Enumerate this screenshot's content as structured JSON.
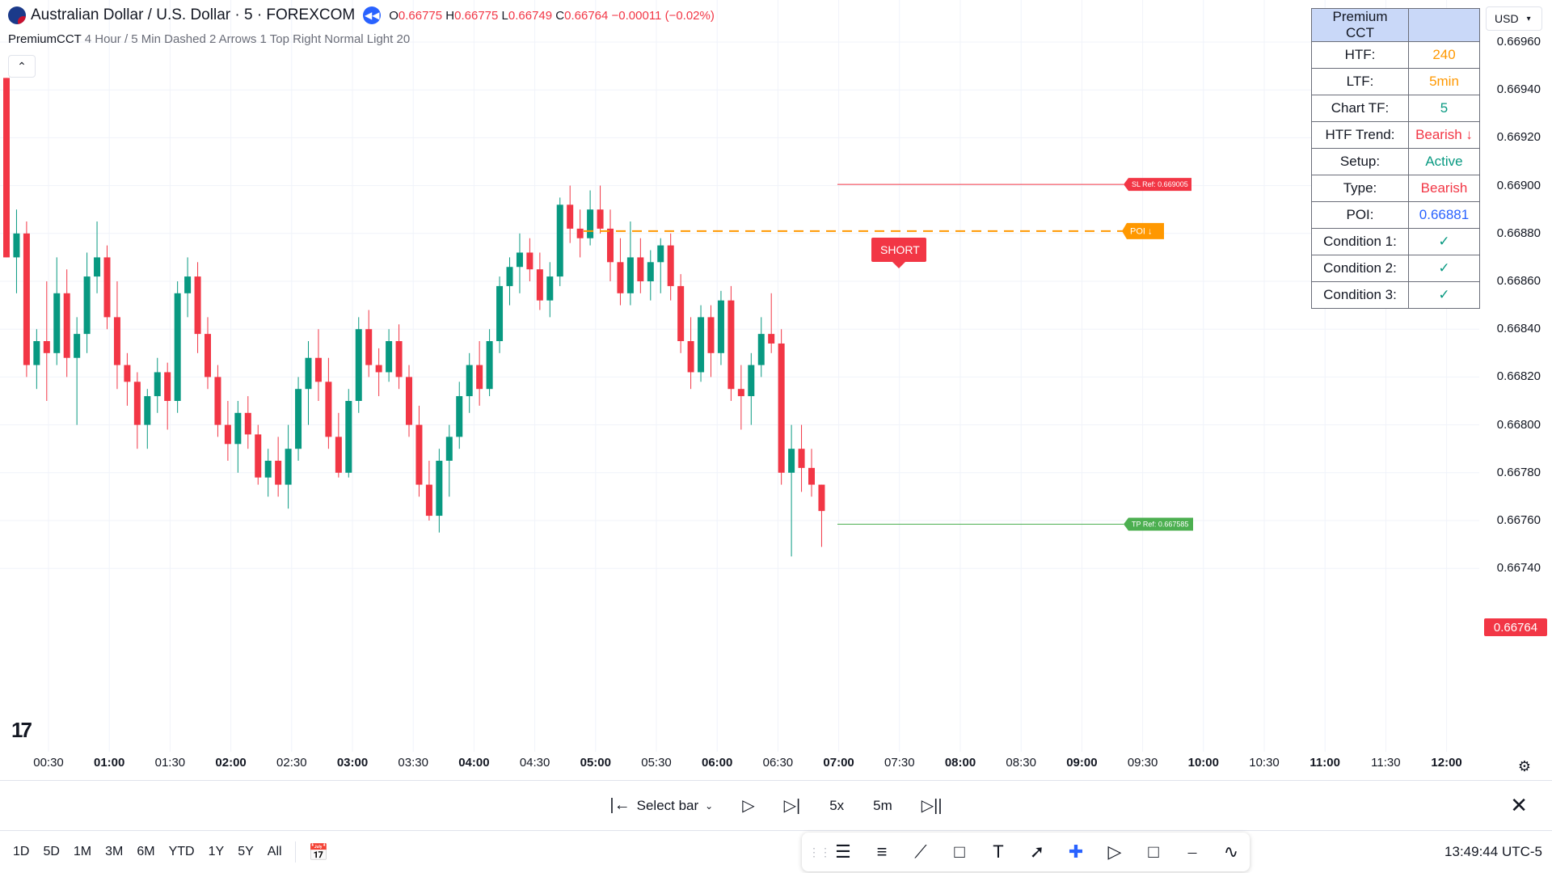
{
  "legend": {
    "title": "Australian Dollar / U.S. Dollar · 5 · FOREXCOM",
    "o_label": "O",
    "o_value": "0.66775",
    "h_label": "H",
    "h_value": "0.66775",
    "l_label": "L",
    "l_value": "0.66749",
    "c_label": "C",
    "c_value": "0.66764",
    "change": "−0.00011 (−0.02%)"
  },
  "indicator": {
    "name": "PremiumCCT",
    "params": "4 Hour / 5 Min Dashed 2 Arrows 1 Top Right Normal Light 20"
  },
  "price_axis": {
    "currency": "USD",
    "current_price": "0.66764",
    "labels": [
      "0.66960",
      "0.66940",
      "0.66920",
      "0.66900",
      "0.66880",
      "0.66860",
      "0.66840",
      "0.66820",
      "0.66800",
      "0.66780",
      "0.66760",
      "0.66740"
    ]
  },
  "time_axis": {
    "labels": [
      {
        "t": "00:30",
        "bold": false
      },
      {
        "t": "01:00",
        "bold": true
      },
      {
        "t": "01:30",
        "bold": false
      },
      {
        "t": "02:00",
        "bold": true
      },
      {
        "t": "02:30",
        "bold": false
      },
      {
        "t": "03:00",
        "bold": true
      },
      {
        "t": "03:30",
        "bold": false
      },
      {
        "t": "04:00",
        "bold": true
      },
      {
        "t": "04:30",
        "bold": false
      },
      {
        "t": "05:00",
        "bold": true
      },
      {
        "t": "05:30",
        "bold": false
      },
      {
        "t": "06:00",
        "bold": true
      },
      {
        "t": "06:30",
        "bold": false
      },
      {
        "t": "07:00",
        "bold": true
      },
      {
        "t": "07:30",
        "bold": false
      },
      {
        "t": "08:00",
        "bold": true
      },
      {
        "t": "08:30",
        "bold": false
      },
      {
        "t": "09:00",
        "bold": true
      },
      {
        "t": "09:30",
        "bold": false
      },
      {
        "t": "10:00",
        "bold": true
      },
      {
        "t": "10:30",
        "bold": false
      },
      {
        "t": "11:00",
        "bold": true
      },
      {
        "t": "11:30",
        "bold": false
      },
      {
        "t": "12:00",
        "bold": true
      }
    ]
  },
  "annotations": {
    "sl_label": "SL Ref: 0.669005",
    "sl_price": 0.669005,
    "poi_label": "POI ↓",
    "poi_price": 0.66881,
    "tp_label": "TP Ref: 0.667585",
    "tp_price": 0.667585,
    "short_label": "SHORT"
  },
  "cct_table": {
    "header": "Premium CCT",
    "rows": [
      {
        "k": "HTF:",
        "v": "240",
        "color": "#ff9800"
      },
      {
        "k": "LTF:",
        "v": "5min",
        "color": "#ff9800"
      },
      {
        "k": "Chart TF:",
        "v": "5",
        "color": "#089981"
      },
      {
        "k": "HTF Trend:",
        "v": "Bearish ↓",
        "color": "#f23645"
      },
      {
        "k": "Setup:",
        "v": "Active",
        "color": "#089981"
      },
      {
        "k": "Type:",
        "v": "Bearish",
        "color": "#f23645"
      },
      {
        "k": "POI:",
        "v": "0.66881",
        "color": "#2962ff"
      },
      {
        "k": "Condition 1:",
        "v": "✓",
        "color": "#089981"
      },
      {
        "k": "Condition 2:",
        "v": "✓",
        "color": "#089981"
      },
      {
        "k": "Condition 3:",
        "v": "✓",
        "color": "#089981"
      }
    ]
  },
  "replay_bar": {
    "select_bar": "Select bar",
    "speed": "5x",
    "interval": "5m"
  },
  "bottom_bar": {
    "ranges": [
      "1D",
      "5D",
      "1M",
      "3M",
      "6M",
      "YTD",
      "1Y",
      "5Y",
      "All"
    ],
    "clock": "13:49:44 UTC-5"
  },
  "colors": {
    "up": "#089981",
    "down": "#f23645",
    "poi": "#ff9800",
    "tp": "#4caf50"
  },
  "chart_data": {
    "type": "candlestick",
    "interval": "5m",
    "ylim": [
      0.6673,
      0.6698
    ],
    "candles": [
      [
        0.66945,
        0.66945,
        0.6687,
        0.6687
      ],
      [
        0.6687,
        0.6689,
        0.66855,
        0.6688
      ],
      [
        0.6688,
        0.66885,
        0.6682,
        0.66825
      ],
      [
        0.66825,
        0.6684,
        0.66815,
        0.66835
      ],
      [
        0.66835,
        0.6686,
        0.6681,
        0.6683
      ],
      [
        0.6683,
        0.6687,
        0.66825,
        0.66855
      ],
      [
        0.66855,
        0.66865,
        0.6682,
        0.66828
      ],
      [
        0.66828,
        0.66845,
        0.668,
        0.66838
      ],
      [
        0.66838,
        0.66872,
        0.6683,
        0.66862
      ],
      [
        0.66862,
        0.66885,
        0.66855,
        0.6687
      ],
      [
        0.6687,
        0.66875,
        0.6684,
        0.66845
      ],
      [
        0.66845,
        0.6686,
        0.66815,
        0.66825
      ],
      [
        0.66825,
        0.6683,
        0.66808,
        0.66818
      ],
      [
        0.66818,
        0.66822,
        0.6679,
        0.668
      ],
      [
        0.668,
        0.66815,
        0.6679,
        0.66812
      ],
      [
        0.66812,
        0.66828,
        0.66805,
        0.66822
      ],
      [
        0.66822,
        0.66826,
        0.66798,
        0.6681
      ],
      [
        0.6681,
        0.6686,
        0.66805,
        0.66855
      ],
      [
        0.66855,
        0.6687,
        0.66845,
        0.66862
      ],
      [
        0.66862,
        0.66868,
        0.6683,
        0.66838
      ],
      [
        0.66838,
        0.66845,
        0.66815,
        0.6682
      ],
      [
        0.6682,
        0.66825,
        0.66795,
        0.668
      ],
      [
        0.668,
        0.6681,
        0.66785,
        0.66792
      ],
      [
        0.66792,
        0.6681,
        0.6678,
        0.66805
      ],
      [
        0.66805,
        0.66812,
        0.6679,
        0.66796
      ],
      [
        0.66796,
        0.668,
        0.66775,
        0.66778
      ],
      [
        0.66778,
        0.6679,
        0.6677,
        0.66785
      ],
      [
        0.66785,
        0.66795,
        0.6677,
        0.66775
      ],
      [
        0.66775,
        0.668,
        0.66765,
        0.6679
      ],
      [
        0.6679,
        0.6682,
        0.66785,
        0.66815
      ],
      [
        0.66815,
        0.66835,
        0.668,
        0.66828
      ],
      [
        0.66828,
        0.6684,
        0.6681,
        0.66818
      ],
      [
        0.66818,
        0.66828,
        0.6679,
        0.66795
      ],
      [
        0.66795,
        0.66805,
        0.66778,
        0.6678
      ],
      [
        0.6678,
        0.66815,
        0.66778,
        0.6681
      ],
      [
        0.6681,
        0.66845,
        0.66805,
        0.6684
      ],
      [
        0.6684,
        0.66848,
        0.6682,
        0.66825
      ],
      [
        0.66825,
        0.66832,
        0.66812,
        0.66822
      ],
      [
        0.66822,
        0.6684,
        0.66818,
        0.66835
      ],
      [
        0.66835,
        0.66842,
        0.66815,
        0.6682
      ],
      [
        0.6682,
        0.66825,
        0.66795,
        0.668
      ],
      [
        0.668,
        0.66808,
        0.6677,
        0.66775
      ],
      [
        0.66775,
        0.66785,
        0.6676,
        0.66762
      ],
      [
        0.66762,
        0.6679,
        0.66755,
        0.66785
      ],
      [
        0.66785,
        0.668,
        0.6677,
        0.66795
      ],
      [
        0.66795,
        0.66818,
        0.6679,
        0.66812
      ],
      [
        0.66812,
        0.6683,
        0.66805,
        0.66825
      ],
      [
        0.66825,
        0.66835,
        0.66808,
        0.66815
      ],
      [
        0.66815,
        0.6684,
        0.66812,
        0.66835
      ],
      [
        0.66835,
        0.66862,
        0.6683,
        0.66858
      ],
      [
        0.66858,
        0.6687,
        0.6685,
        0.66866
      ],
      [
        0.66866,
        0.6688,
        0.66855,
        0.66872
      ],
      [
        0.66872,
        0.66878,
        0.6686,
        0.66865
      ],
      [
        0.66865,
        0.66872,
        0.66848,
        0.66852
      ],
      [
        0.66852,
        0.66868,
        0.66845,
        0.66862
      ],
      [
        0.66862,
        0.66895,
        0.66858,
        0.66892
      ],
      [
        0.66892,
        0.669,
        0.66876,
        0.66882
      ],
      [
        0.66882,
        0.6689,
        0.6687,
        0.66878
      ],
      [
        0.66878,
        0.66898,
        0.66875,
        0.6689
      ],
      [
        0.6689,
        0.669,
        0.6688,
        0.66882
      ],
      [
        0.66882,
        0.6689,
        0.6686,
        0.66868
      ],
      [
        0.66868,
        0.66878,
        0.6685,
        0.66855
      ],
      [
        0.66855,
        0.66885,
        0.6685,
        0.6687
      ],
      [
        0.6687,
        0.66878,
        0.66855,
        0.6686
      ],
      [
        0.6686,
        0.66873,
        0.66852,
        0.66868
      ],
      [
        0.66868,
        0.66878,
        0.66855,
        0.66875
      ],
      [
        0.66875,
        0.6688,
        0.66852,
        0.66858
      ],
      [
        0.66858,
        0.66863,
        0.6683,
        0.66835
      ],
      [
        0.66835,
        0.66845,
        0.66815,
        0.66822
      ],
      [
        0.66822,
        0.6685,
        0.66818,
        0.66845
      ],
      [
        0.66845,
        0.6685,
        0.6682,
        0.6683
      ],
      [
        0.6683,
        0.66856,
        0.66825,
        0.66852
      ],
      [
        0.66852,
        0.66858,
        0.6681,
        0.66815
      ],
      [
        0.66815,
        0.66825,
        0.66798,
        0.66812
      ],
      [
        0.66812,
        0.6683,
        0.668,
        0.66825
      ],
      [
        0.66825,
        0.66845,
        0.6682,
        0.66838
      ],
      [
        0.66838,
        0.66855,
        0.6683,
        0.66834
      ],
      [
        0.66834,
        0.6684,
        0.66775,
        0.6678
      ],
      [
        0.6678,
        0.668,
        0.66745,
        0.6679
      ],
      [
        0.6679,
        0.668,
        0.66772,
        0.66782
      ],
      [
        0.66782,
        0.6679,
        0.6677,
        0.66775
      ],
      [
        0.66775,
        0.66775,
        0.66749,
        0.66764
      ]
    ]
  }
}
